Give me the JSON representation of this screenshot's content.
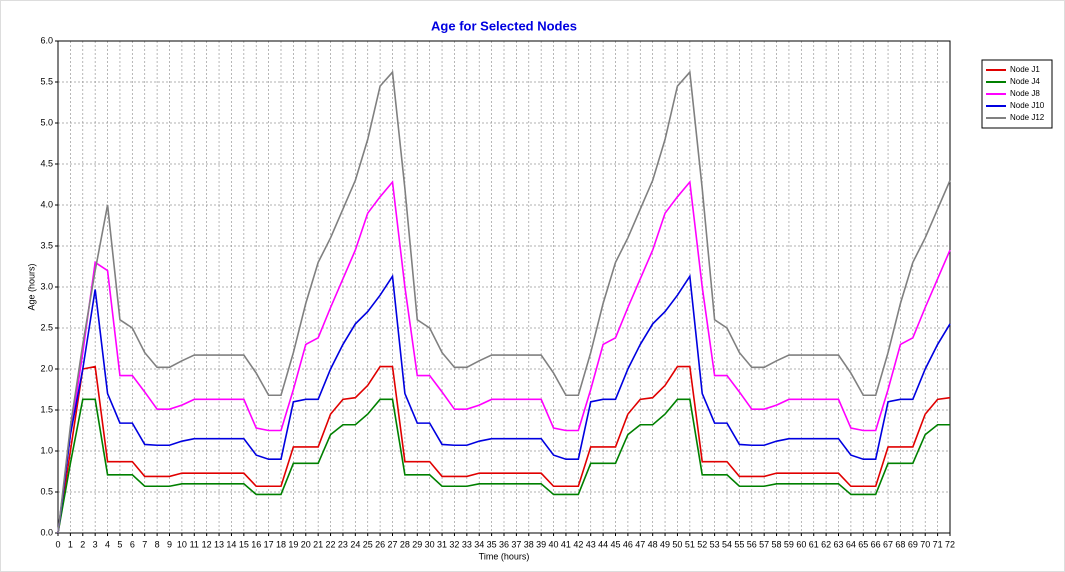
{
  "chart_data": {
    "type": "line",
    "title": "Age for Selected Nodes",
    "x_label": "Time (hours)",
    "y_label": "Age (hours)",
    "x": [
      0,
      1,
      2,
      3,
      4,
      5,
      6,
      7,
      8,
      9,
      10,
      11,
      12,
      13,
      14,
      15,
      16,
      17,
      18,
      19,
      20,
      21,
      22,
      23,
      24,
      25,
      26,
      27,
      28,
      29,
      30,
      31,
      32,
      33,
      34,
      35,
      36,
      37,
      38,
      39,
      40,
      41,
      42,
      43,
      44,
      45,
      46,
      47,
      48,
      49,
      50,
      51,
      52,
      53,
      54,
      55,
      56,
      57,
      58,
      59,
      60,
      61,
      62,
      63,
      64,
      65,
      66,
      67,
      68,
      69,
      70,
      71,
      72
    ],
    "xlim": [
      0,
      72
    ],
    "xticks": [
      0,
      1,
      2,
      3,
      4,
      5,
      6,
      7,
      8,
      9,
      10,
      11,
      12,
      13,
      14,
      15,
      16,
      17,
      18,
      19,
      20,
      21,
      22,
      23,
      24,
      25,
      26,
      27,
      28,
      29,
      30,
      31,
      32,
      33,
      34,
      35,
      36,
      37,
      38,
      39,
      40,
      41,
      42,
      43,
      44,
      45,
      46,
      47,
      48,
      49,
      50,
      51,
      52,
      53,
      54,
      55,
      56,
      57,
      58,
      59,
      60,
      61,
      62,
      63,
      64,
      65,
      66,
      67,
      68,
      69,
      70,
      71,
      72
    ],
    "ylim": [
      0,
      6
    ],
    "yticks": [
      {
        "value": 0,
        "label": "0.0"
      },
      0.5,
      {
        "value": 1,
        "label": "1.0"
      },
      1.5,
      {
        "value": 2,
        "label": "2.0"
      },
      2.5,
      {
        "value": 3,
        "label": "3.0"
      },
      3.5,
      {
        "value": 4,
        "label": "4.0"
      },
      4.5,
      {
        "value": 5,
        "label": "5.0"
      },
      5.5,
      {
        "value": 6,
        "label": "6.0"
      }
    ],
    "grid": true,
    "legend": "right",
    "series": [
      {
        "name": "Node J1",
        "color": "#e00000",
        "values": [
          0,
          1.0,
          2.0,
          2.03,
          0.87,
          0.87,
          0.87,
          0.69,
          0.69,
          0.69,
          0.73,
          0.73,
          0.73,
          0.73,
          0.73,
          0.73,
          0.57,
          0.57,
          0.57,
          1.05,
          1.05,
          1.05,
          1.45,
          1.63,
          1.65,
          1.8,
          2.03,
          2.03,
          0.87,
          0.87,
          0.87,
          0.69,
          0.69,
          0.69,
          0.73,
          0.73,
          0.73,
          0.73,
          0.73,
          0.73,
          0.57,
          0.57,
          0.57,
          1.05,
          1.05,
          1.05,
          1.45,
          1.63,
          1.65,
          1.8,
          2.03,
          2.03,
          0.87,
          0.87,
          0.87,
          0.69,
          0.69,
          0.69,
          0.73,
          0.73,
          0.73,
          0.73,
          0.73,
          0.73,
          0.57,
          0.57,
          0.57,
          1.05,
          1.05,
          1.05,
          1.45,
          1.63,
          1.65
        ]
      },
      {
        "name": "Node J4",
        "color": "#008000",
        "values": [
          0,
          0.85,
          1.63,
          1.63,
          0.71,
          0.71,
          0.71,
          0.57,
          0.57,
          0.57,
          0.6,
          0.6,
          0.6,
          0.6,
          0.6,
          0.6,
          0.47,
          0.47,
          0.47,
          0.85,
          0.85,
          0.85,
          1.2,
          1.32,
          1.32,
          1.45,
          1.63,
          1.63,
          0.71,
          0.71,
          0.71,
          0.57,
          0.57,
          0.57,
          0.6,
          0.6,
          0.6,
          0.6,
          0.6,
          0.6,
          0.47,
          0.47,
          0.47,
          0.85,
          0.85,
          0.85,
          1.2,
          1.32,
          1.32,
          1.45,
          1.63,
          1.63,
          0.71,
          0.71,
          0.71,
          0.57,
          0.57,
          0.57,
          0.6,
          0.6,
          0.6,
          0.6,
          0.6,
          0.6,
          0.47,
          0.47,
          0.47,
          0.85,
          0.85,
          0.85,
          1.2,
          1.32,
          1.32
        ]
      },
      {
        "name": "Node J8",
        "color": "#ff00ff",
        "values": [
          0,
          1.2,
          2.2,
          3.3,
          3.2,
          1.92,
          1.92,
          1.72,
          1.51,
          1.51,
          1.56,
          1.63,
          1.63,
          1.63,
          1.63,
          1.63,
          1.28,
          1.25,
          1.25,
          1.75,
          2.3,
          2.38,
          2.75,
          3.1,
          3.45,
          3.9,
          4.1,
          4.28,
          3.0,
          1.92,
          1.92,
          1.72,
          1.51,
          1.51,
          1.56,
          1.63,
          1.63,
          1.63,
          1.63,
          1.63,
          1.28,
          1.25,
          1.25,
          1.75,
          2.3,
          2.38,
          2.75,
          3.1,
          3.45,
          3.9,
          4.1,
          4.28,
          3.0,
          1.92,
          1.92,
          1.72,
          1.51,
          1.51,
          1.56,
          1.63,
          1.63,
          1.63,
          1.63,
          1.63,
          1.28,
          1.25,
          1.25,
          1.75,
          2.3,
          2.38,
          2.75,
          3.1,
          3.45
        ]
      },
      {
        "name": "Node J10",
        "color": "#0000e0",
        "values": [
          0,
          1.2,
          2.0,
          2.97,
          1.7,
          1.34,
          1.34,
          1.08,
          1.07,
          1.07,
          1.12,
          1.15,
          1.15,
          1.15,
          1.15,
          1.15,
          0.95,
          0.9,
          0.9,
          1.6,
          1.63,
          1.63,
          2.0,
          2.3,
          2.55,
          2.7,
          2.9,
          3.13,
          1.7,
          1.34,
          1.34,
          1.08,
          1.07,
          1.07,
          1.12,
          1.15,
          1.15,
          1.15,
          1.15,
          1.15,
          0.95,
          0.9,
          0.9,
          1.6,
          1.63,
          1.63,
          2.0,
          2.3,
          2.55,
          2.7,
          2.9,
          3.13,
          1.7,
          1.34,
          1.34,
          1.08,
          1.07,
          1.07,
          1.12,
          1.15,
          1.15,
          1.15,
          1.15,
          1.15,
          0.95,
          0.9,
          0.9,
          1.6,
          1.63,
          1.63,
          2.0,
          2.3,
          2.55
        ]
      },
      {
        "name": "Node J12",
        "color": "#808080",
        "values": [
          0,
          1.3,
          2.3,
          3.2,
          4.0,
          2.6,
          2.5,
          2.2,
          2.02,
          2.02,
          2.1,
          2.17,
          2.17,
          2.17,
          2.17,
          2.17,
          1.95,
          1.68,
          1.68,
          2.2,
          2.8,
          3.3,
          3.6,
          3.95,
          4.3,
          4.8,
          5.45,
          5.62,
          4.2,
          2.6,
          2.5,
          2.2,
          2.02,
          2.02,
          2.1,
          2.17,
          2.17,
          2.17,
          2.17,
          2.17,
          1.95,
          1.68,
          1.68,
          2.2,
          2.8,
          3.3,
          3.6,
          3.95,
          4.3,
          4.8,
          5.45,
          5.62,
          4.2,
          2.6,
          2.5,
          2.2,
          2.02,
          2.02,
          2.1,
          2.17,
          2.17,
          2.17,
          2.17,
          2.17,
          1.95,
          1.68,
          1.68,
          2.2,
          2.8,
          3.3,
          3.6,
          3.95,
          4.3
        ]
      }
    ]
  }
}
